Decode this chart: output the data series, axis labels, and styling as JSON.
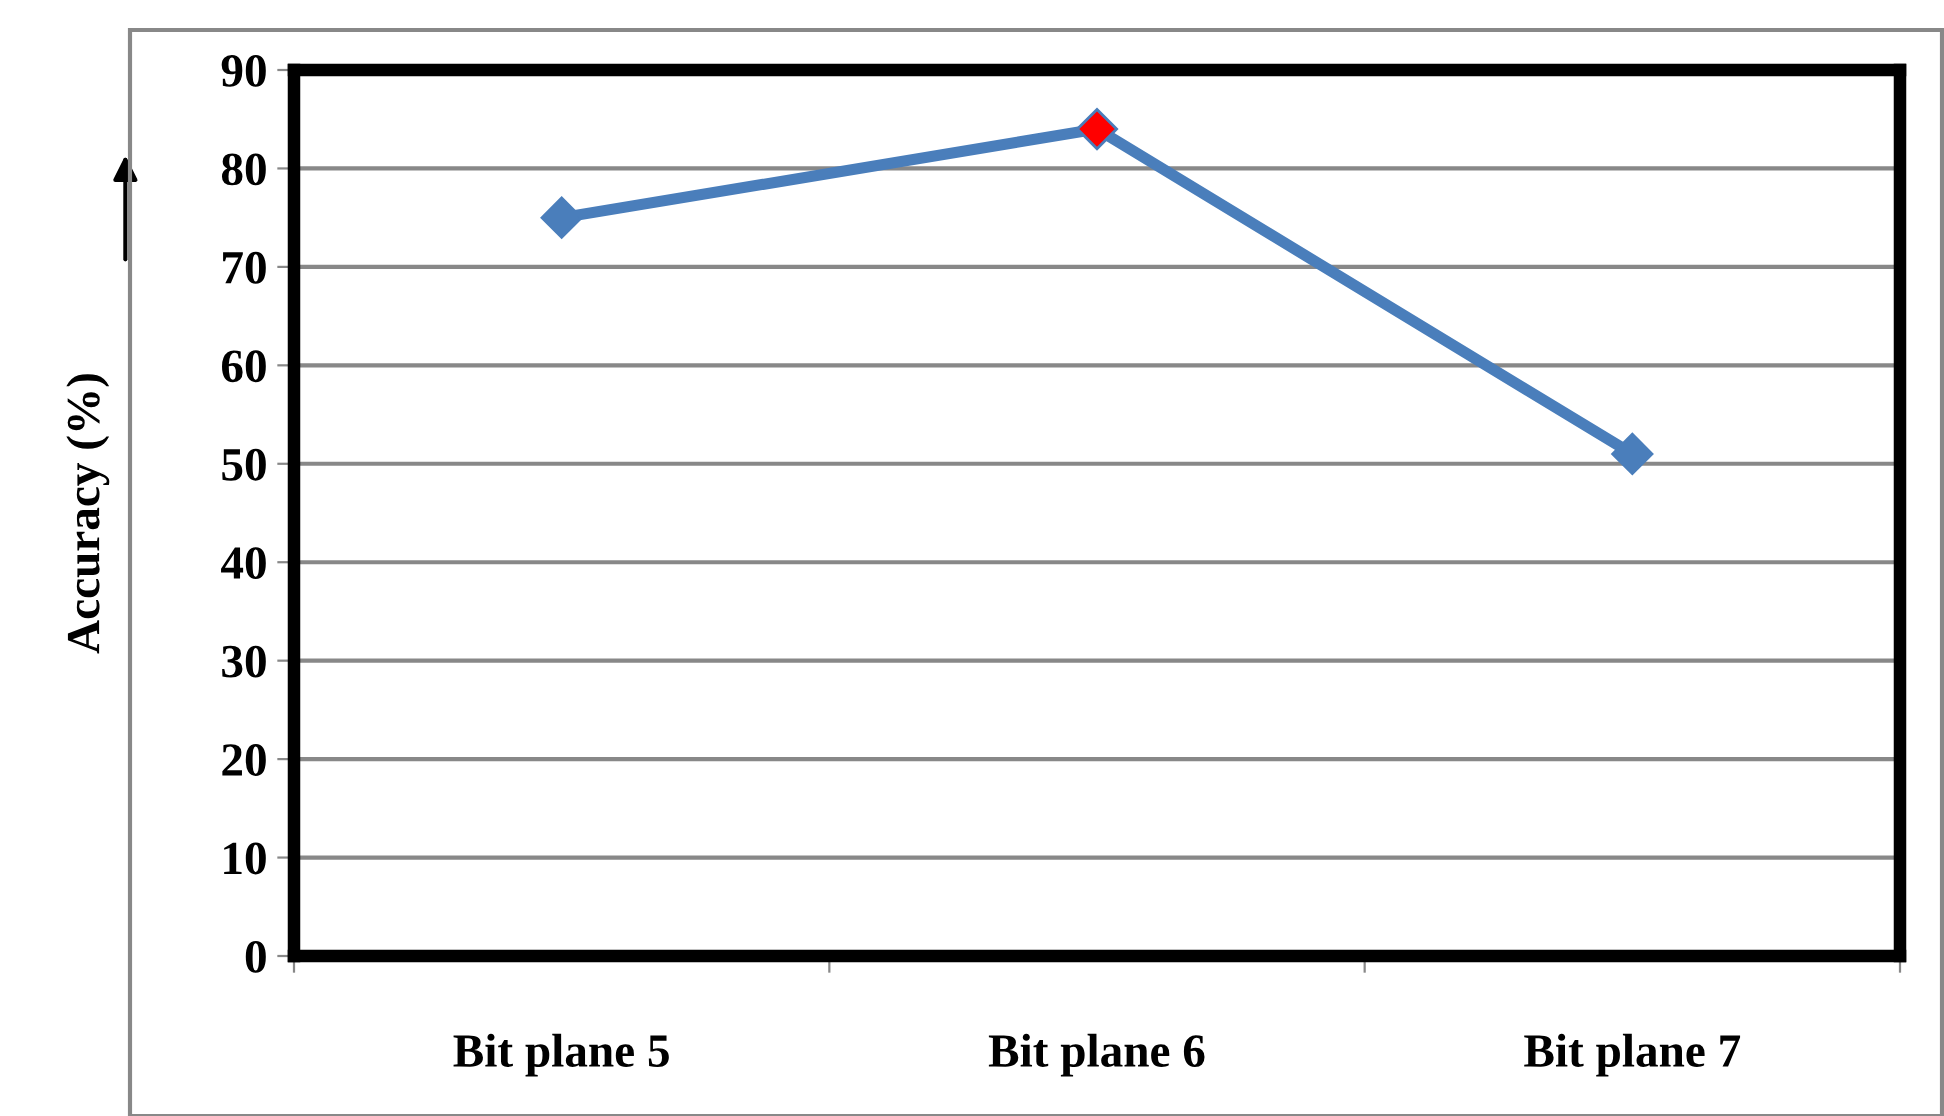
{
  "chart_data": {
    "type": "line",
    "ylabel": "Accuracy (%)",
    "categories": [
      "Bit plane 5",
      "Bit plane 6",
      "Bit plane 7"
    ],
    "series": [
      {
        "color": "#4a7ebb",
        "values": [
          75,
          84,
          51
        ],
        "colors": [
          "#4a7ebb",
          "#ff0000",
          "#4a7ebb"
        ]
      }
    ],
    "ylim": [
      0,
      90
    ],
    "yticks": [
      0,
      10,
      20,
      30,
      40,
      50,
      60,
      70,
      80,
      90
    ],
    "grid": "y",
    "marker": "diamond",
    "line_style": "solid",
    "legend": false
  }
}
